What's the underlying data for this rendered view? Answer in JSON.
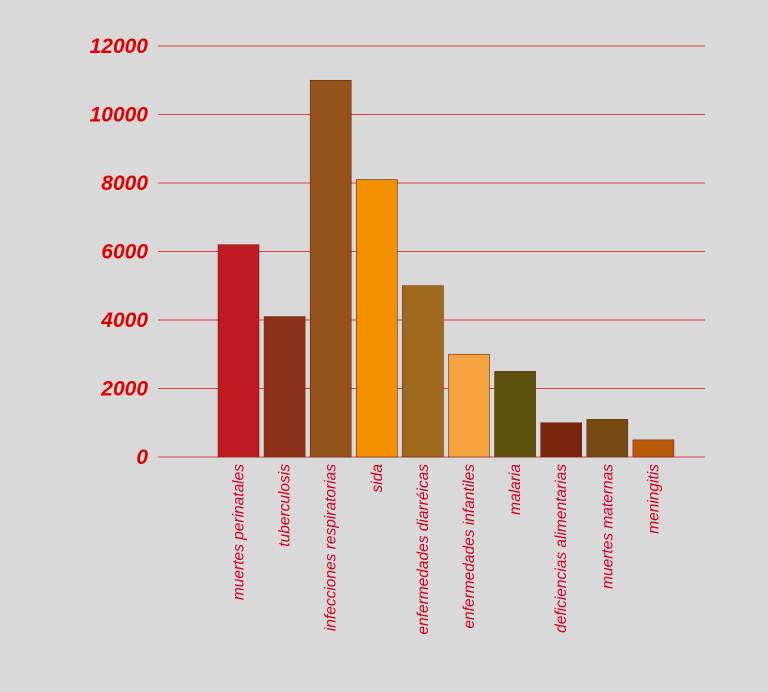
{
  "chart_data": {
    "type": "bar",
    "title": "",
    "xlabel": "",
    "ylabel": "",
    "ylim": [
      0,
      12000
    ],
    "yticks": [
      0,
      2000,
      4000,
      6000,
      8000,
      10000,
      12000
    ],
    "grid": true,
    "categories": [
      "muertes perinatales",
      "tuberculosis",
      "infecciones respiratorias",
      "sida",
      "enfermedades diarréicas",
      "enfermedades infantiles",
      "malaria",
      "deficiencias alimentarias",
      "muertes maternas",
      "meningitis"
    ],
    "values": [
      6200,
      4100,
      11000,
      8100,
      5000,
      3000,
      2500,
      1000,
      1100,
      500
    ],
    "colors": [
      "#bf1a24",
      "#8c3117",
      "#93531a",
      "#f39000",
      "#a06a1c",
      "#f6a440",
      "#5a520b",
      "#7a240e",
      "#764813",
      "#b95a0a"
    ]
  }
}
